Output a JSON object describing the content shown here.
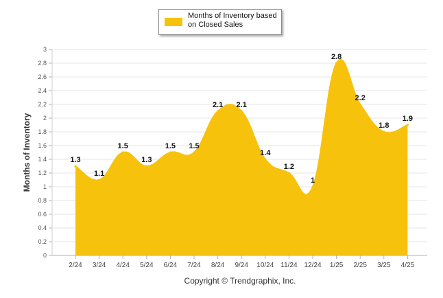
{
  "chart_data": {
    "type": "area",
    "series": [
      {
        "name": "Months of Inventory based on Closed Sales",
        "values": [
          1.3,
          1.1,
          1.5,
          1.3,
          1.5,
          1.5,
          2.1,
          2.1,
          1.4,
          1.2,
          1,
          2.8,
          2.2,
          1.8,
          1.9
        ]
      }
    ],
    "categories": [
      "2/24",
      "3/24",
      "4/24",
      "5/24",
      "6/24",
      "7/24",
      "8/24",
      "9/24",
      "10/24",
      "11/24",
      "12/24",
      "1/25",
      "2/25",
      "3/25",
      "4/25"
    ],
    "data_labels": [
      "1.3",
      "1.1",
      "1.5",
      "1.3",
      "1.5",
      "1.5",
      "2.1",
      "2.1",
      "1.4",
      "1.2",
      "1",
      "2.8",
      "2.2",
      "1.8",
      "1.9"
    ],
    "ylabel": "Months of Inventory",
    "xlabel": "",
    "ylim": [
      0,
      3
    ],
    "yticks": [
      "0",
      "0.2",
      "0.4",
      "0.6",
      "0.8",
      "1",
      "1.2",
      "1.4",
      "1.6",
      "1.8",
      "2",
      "2.2",
      "2.4",
      "2.6",
      "2.8",
      "3"
    ],
    "grid": true,
    "legend_position": "top-center",
    "color": "#F7C20C",
    "footer": "Copyright © Trendgraphix, Inc."
  }
}
